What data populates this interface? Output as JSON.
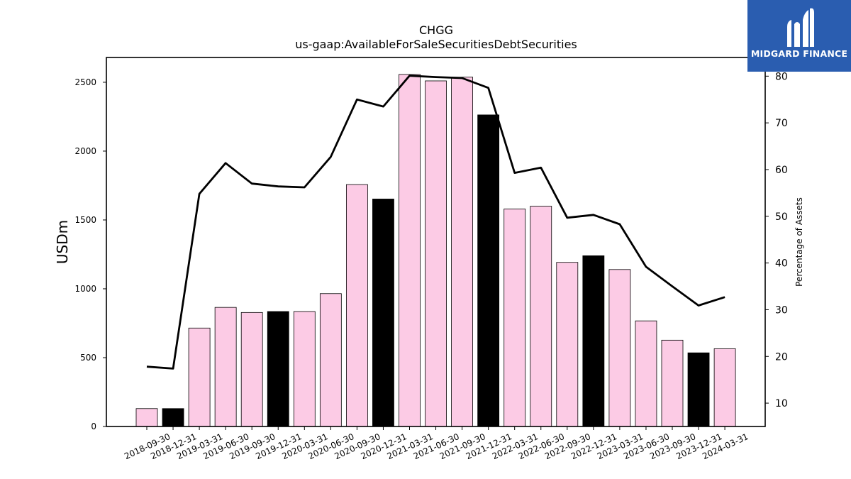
{
  "brand": {
    "name": "MIDGARD FINANCE",
    "logo_icon": "midgard-mark-icon",
    "background": "#2a5db0"
  },
  "chart_data": {
    "type": "bar",
    "title": "CHGG",
    "subtitle": "us-gaap:AvailableForSaleSecuritiesDebtSecurities",
    "ylabel": "USDm",
    "y2label": "Percentage of Assets",
    "ylim": [
      0,
      2680
    ],
    "y2lim": [
      5,
      84
    ],
    "yticks": [
      0,
      500,
      1000,
      1500,
      2000,
      2500
    ],
    "y2ticks": [
      10,
      20,
      30,
      40,
      50,
      60,
      70,
      80
    ],
    "categories": [
      "2018-09-30",
      "2018-12-31",
      "2019-03-31",
      "2019-06-30",
      "2019-09-30",
      "2019-12-31",
      "2020-03-31",
      "2020-06-30",
      "2020-09-30",
      "2020-12-31",
      "2021-03-31",
      "2021-06-30",
      "2021-09-30",
      "2021-12-31",
      "2022-03-31",
      "2022-06-30",
      "2022-09-30",
      "2022-12-31",
      "2023-03-31",
      "2023-06-30",
      "2023-09-30",
      "2023-12-31",
      "2024-03-31"
    ],
    "series": [
      {
        "kind": "bar",
        "values": [
          130,
          130,
          715,
          865,
          828,
          835,
          835,
          965,
          1757,
          1652,
          2557,
          2510,
          2537,
          2263,
          1580,
          1600,
          1192,
          1240,
          1140,
          767,
          627,
          535,
          565
        ]
      },
      {
        "kind": "line",
        "axis": "right",
        "values": [
          17.8,
          17.4,
          54.8,
          61.4,
          57.0,
          56.4,
          56.2,
          62.7,
          75.0,
          73.5,
          80.1,
          79.8,
          79.6,
          77.5,
          59.3,
          60.4,
          49.7,
          50.3,
          48.3,
          39.2,
          35.0,
          30.9,
          32.7
        ]
      }
    ],
    "bar_colors": {
      "default": "#fccbe5",
      "year_end": "#000000"
    },
    "highlight_categories": [
      "2018-12-31",
      "2019-12-31",
      "2020-12-31",
      "2021-12-31",
      "2022-12-31",
      "2023-12-31"
    ],
    "line_color": "#000000",
    "grid": false,
    "legend": "none"
  }
}
